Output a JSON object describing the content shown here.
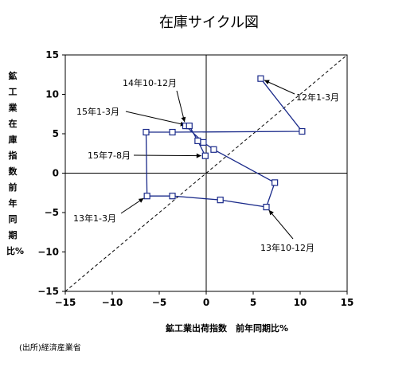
{
  "chart_data": {
    "type": "scatter",
    "title": "在庫サイクル図",
    "xlabel": "鉱工業出荷指数　前年同期比%",
    "ylabel": "鉱工業在庫指数　前年同期比%",
    "xlim": [
      -15,
      15
    ],
    "ylim": [
      -15,
      15
    ],
    "xticks": [
      -15,
      -10,
      -5,
      0,
      5,
      10,
      15
    ],
    "yticks": [
      -15,
      -10,
      -5,
      0,
      5,
      10,
      15
    ],
    "diagonal_reference_line": "y = x (dashed)",
    "series": [
      {
        "points": [
          {
            "x": 5.8,
            "y": 12.0,
            "label": "12年1-3月"
          },
          {
            "x": 10.2,
            "y": 5.3
          },
          {
            "x": -3.6,
            "y": 5.2
          },
          {
            "x": -6.4,
            "y": 5.2
          },
          {
            "x": -6.3,
            "y": -2.9,
            "label": "13年1-3月"
          },
          {
            "x": -3.6,
            "y": -2.9
          },
          {
            "x": 1.5,
            "y": -3.4
          },
          {
            "x": 6.4,
            "y": -4.3,
            "label": "13年10-12月"
          },
          {
            "x": 7.3,
            "y": -1.2
          },
          {
            "x": 0.8,
            "y": 3.0
          },
          {
            "x": -0.3,
            "y": 3.9
          },
          {
            "x": -2.2,
            "y": 6.0,
            "label": "14年10-12月"
          },
          {
            "x": -1.8,
            "y": 6.0,
            "label": "15年1-3月"
          },
          {
            "x": -0.9,
            "y": 4.1
          },
          {
            "x": -0.1,
            "y": 2.2,
            "label": "15年7-8月"
          }
        ]
      }
    ]
  },
  "annotations": {
    "a12_1_3": "12年1-3月",
    "a13_1_3": "13年1-3月",
    "a13_10_12": "13年10-12月",
    "a14_10_12": "14年10-12月",
    "a15_1_3": "15年1-3月",
    "a15_7_8": "15年7-8月"
  },
  "source": "(出所)経済産業省",
  "colors": {
    "series": "#1a2a8a",
    "axis": "#000000",
    "diagonal": "#000000"
  }
}
